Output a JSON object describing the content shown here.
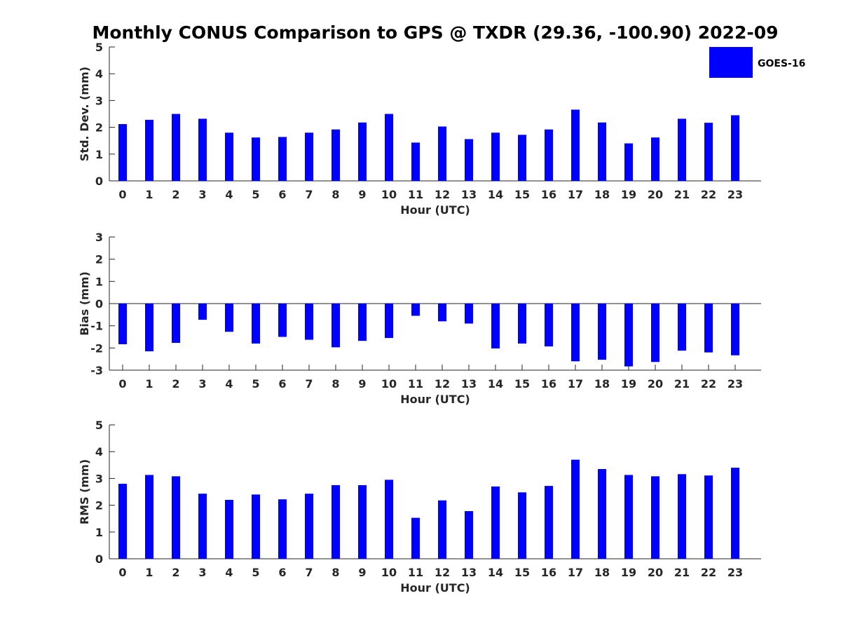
{
  "title": "Monthly CONUS Comparison to GPS @ TXDR (29.36, -100.90) 2022-09",
  "legend": {
    "label": "GOES-16",
    "color": "#0000ff"
  },
  "bar_color": "#0000ff",
  "chart_data": [
    {
      "type": "bar",
      "xlabel": "Hour (UTC)",
      "ylabel": "Std. Dev. (mm)",
      "ylim": [
        0,
        5
      ],
      "yticks": [
        0,
        1,
        2,
        3,
        4,
        5
      ],
      "categories": [
        "0",
        "1",
        "2",
        "3",
        "4",
        "5",
        "6",
        "7",
        "8",
        "9",
        "10",
        "11",
        "12",
        "13",
        "14",
        "15",
        "16",
        "17",
        "18",
        "19",
        "20",
        "21",
        "22",
        "23"
      ],
      "series": [
        {
          "name": "GOES-16",
          "values": [
            2.12,
            2.28,
            2.5,
            2.32,
            1.8,
            1.62,
            1.64,
            1.8,
            1.92,
            2.18,
            2.5,
            1.43,
            2.03,
            1.56,
            1.8,
            1.72,
            1.92,
            2.66,
            2.18,
            1.4,
            1.62,
            2.32,
            2.17,
            2.45
          ]
        }
      ]
    },
    {
      "type": "bar",
      "xlabel": "Hour (UTC)",
      "ylabel": "Bias (mm)",
      "ylim": [
        -3,
        3
      ],
      "yticks": [
        -3,
        -2,
        -1,
        0,
        1,
        2,
        3
      ],
      "categories": [
        "0",
        "1",
        "2",
        "3",
        "4",
        "5",
        "6",
        "7",
        "8",
        "9",
        "10",
        "11",
        "12",
        "13",
        "14",
        "15",
        "16",
        "17",
        "18",
        "19",
        "20",
        "21",
        "22",
        "23"
      ],
      "series": [
        {
          "name": "GOES-16",
          "values": [
            -1.83,
            -2.15,
            -1.77,
            -0.73,
            -1.27,
            -1.8,
            -1.5,
            -1.63,
            -1.97,
            -1.68,
            -1.55,
            -0.55,
            -0.8,
            -0.9,
            -2.02,
            -1.8,
            -1.93,
            -2.6,
            -2.53,
            -2.83,
            -2.63,
            -2.12,
            -2.2,
            -2.33
          ]
        }
      ]
    },
    {
      "type": "bar",
      "xlabel": "Hour (UTC)",
      "ylabel": "RMS (mm)",
      "ylim": [
        0,
        5
      ],
      "yticks": [
        0,
        1,
        2,
        3,
        4,
        5
      ],
      "categories": [
        "0",
        "1",
        "2",
        "3",
        "4",
        "5",
        "6",
        "7",
        "8",
        "9",
        "10",
        "11",
        "12",
        "13",
        "14",
        "15",
        "16",
        "17",
        "18",
        "19",
        "20",
        "21",
        "22",
        "23"
      ],
      "series": [
        {
          "name": "GOES-16",
          "values": [
            2.8,
            3.13,
            3.08,
            2.43,
            2.2,
            2.4,
            2.22,
            2.43,
            2.75,
            2.75,
            2.95,
            1.53,
            2.18,
            1.78,
            2.7,
            2.48,
            2.72,
            3.7,
            3.35,
            3.13,
            3.08,
            3.16,
            3.11,
            3.4
          ]
        }
      ]
    }
  ]
}
